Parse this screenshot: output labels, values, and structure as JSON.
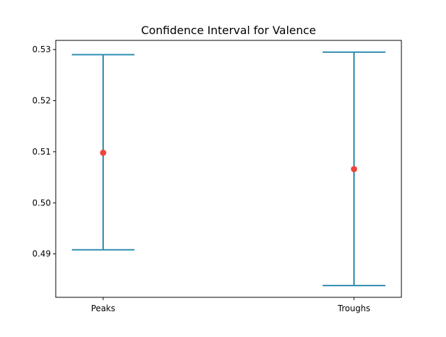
{
  "chart_data": {
    "type": "errorbar",
    "title": "Confidence Interval for Valence",
    "xlabel": "",
    "ylabel": "",
    "categories": [
      "Peaks",
      "Troughs"
    ],
    "series": [
      {
        "means": [
          0.5098,
          0.5066
        ],
        "lower": [
          0.4908,
          0.4838
        ],
        "upper": [
          0.529,
          0.5295
        ]
      }
    ],
    "ylim": [
      0.4815,
      0.5318
    ],
    "yticks": [
      0.49,
      0.5,
      0.51,
      0.52,
      0.53
    ],
    "ytick_labels": [
      "0.49",
      "0.50",
      "0.51",
      "0.52",
      "0.53"
    ],
    "grid": false,
    "legend": "none",
    "colors": {
      "errorbar": "#2b8cb0",
      "mean_point": "#f0443c",
      "axes": "#000000",
      "background": "#ffffff"
    }
  }
}
